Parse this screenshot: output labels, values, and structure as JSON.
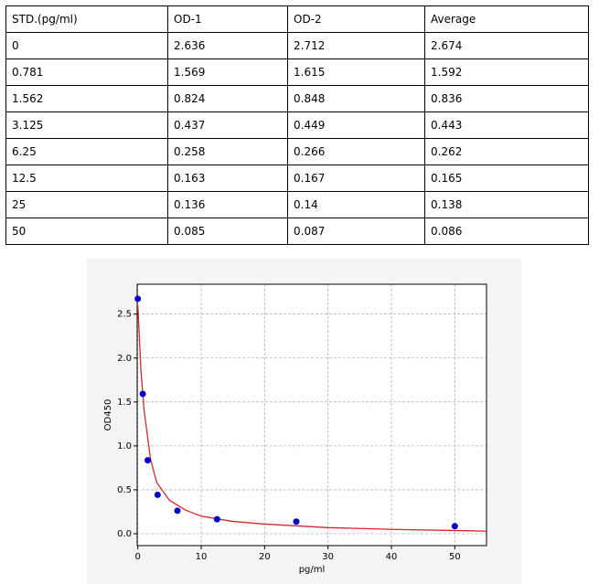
{
  "table": {
    "header": [
      "STD.(pg/ml)",
      "OD-1",
      "OD-2",
      "Average"
    ],
    "rows": [
      [
        "0",
        "2.636",
        "2.712",
        "2.674"
      ],
      [
        "0.781",
        "1.569",
        "1.615",
        "1.592"
      ],
      [
        "1.562",
        "0.824",
        "0.848",
        "0.836"
      ],
      [
        "3.125",
        "0.437",
        "0.449",
        "0.443"
      ],
      [
        "6.25",
        "0.258",
        "0.266",
        "0.262"
      ],
      [
        "12.5",
        "0.163",
        "0.167",
        "0.165"
      ],
      [
        "25",
        "0.136",
        "0.14",
        "0.138"
      ],
      [
        "50",
        "0.085",
        "0.087",
        "0.086"
      ]
    ]
  },
  "chart_data": {
    "type": "scatter",
    "xlabel": "pg/ml",
    "ylabel": "OD450",
    "x": [
      0,
      0.781,
      1.562,
      3.125,
      6.25,
      12.5,
      25,
      50
    ],
    "values": [
      2.674,
      1.592,
      0.836,
      0.443,
      0.262,
      0.165,
      0.138,
      0.086
    ],
    "color": "#0000cc",
    "fit": {
      "color": "#d62728",
      "x": [
        0,
        0.5,
        1,
        2,
        3,
        5,
        7.5,
        10,
        15,
        20,
        30,
        40,
        55
      ],
      "values": [
        2.6,
        1.85,
        1.4,
        0.85,
        0.58,
        0.38,
        0.27,
        0.2,
        0.14,
        0.11,
        0.07,
        0.05,
        0.03
      ]
    },
    "xlim": [
      -0.1,
      55
    ],
    "ylim": [
      -0.135,
      2.84
    ],
    "xticks": [
      0,
      10,
      20,
      30,
      40,
      50
    ],
    "yticks": [
      {
        "value": 0,
        "label": "0.0"
      },
      {
        "value": 0.5,
        "label": "0.5"
      },
      {
        "value": 1,
        "label": "1.0"
      },
      {
        "value": 1.5,
        "label": "1.5"
      },
      {
        "value": 2,
        "label": "2.0"
      },
      {
        "value": 2.5,
        "label": "2.5"
      }
    ],
    "grid": true
  }
}
